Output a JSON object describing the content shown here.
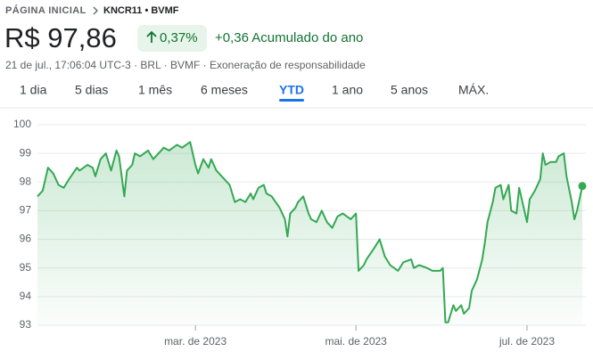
{
  "header": {
    "breadcrumb_home": "PÁGINA INICIAL",
    "breadcrumb_ticker": "KNCR11 • BVMF",
    "price": "R$ 97,86",
    "change_percent": "0,37%",
    "change_ytd": "+0,36 Acumulado do ano",
    "info": "21 de jul., 17:06:04 UTC-3 · BRL · BVMF · Exoneração de responsabilidade"
  },
  "tabs": [
    "1 dia",
    "5 dias",
    "1 mês",
    "6 meses",
    "YTD",
    "1 ano",
    "5 anos",
    "MÁX."
  ],
  "selected_tab": 4,
  "chart_data": {
    "type": "line",
    "color": "#34a853",
    "x": [
      0,
      2,
      4,
      6,
      8,
      10,
      12,
      15,
      16,
      19,
      21,
      22,
      24,
      26,
      28,
      30,
      31,
      33,
      34,
      36,
      37,
      39,
      42,
      44,
      46,
      48,
      50,
      53,
      55,
      58,
      60,
      61,
      63,
      65,
      66,
      68,
      71,
      73,
      75,
      77,
      79,
      81,
      82,
      84,
      86,
      87,
      89,
      92,
      94,
      95,
      96,
      98,
      99,
      101,
      103,
      104,
      106,
      108,
      110,
      112,
      114,
      116,
      119,
      121,
      122,
      124,
      125,
      128,
      130,
      132,
      134,
      137,
      139,
      142,
      143,
      145,
      148,
      150,
      153,
      154,
      155,
      156,
      158,
      159,
      161,
      162,
      164,
      165,
      167,
      169,
      170,
      171,
      173,
      174,
      176,
      177,
      179,
      180,
      182,
      183,
      186,
      187,
      189,
      191,
      192,
      193,
      195,
      197,
      198,
      200,
      201,
      203,
      204,
      205,
      207
    ],
    "values": [
      97.5,
      97.7,
      98.5,
      98.3,
      97.9,
      97.8,
      98.1,
      98.5,
      98.4,
      98.6,
      98.5,
      98.2,
      98.8,
      99.0,
      98.4,
      99.1,
      98.9,
      97.5,
      98.4,
      98.6,
      99.0,
      98.9,
      99.1,
      98.8,
      99.0,
      99.2,
      99.1,
      99.3,
      99.2,
      99.4,
      98.6,
      98.3,
      98.8,
      98.5,
      98.8,
      98.4,
      98.1,
      97.9,
      97.3,
      97.4,
      97.3,
      97.6,
      97.4,
      97.8,
      97.9,
      97.6,
      97.5,
      97.1,
      96.7,
      96.1,
      96.9,
      97.1,
      97.3,
      97.5,
      96.9,
      96.7,
      96.6,
      97.0,
      96.6,
      96.4,
      96.8,
      96.9,
      96.7,
      96.9,
      94.9,
      95.1,
      95.3,
      95.7,
      96.0,
      95.4,
      95.1,
      94.9,
      95.2,
      95.3,
      95.0,
      95.1,
      95.0,
      94.9,
      94.9,
      95.0,
      93.1,
      93.1,
      93.7,
      93.5,
      93.7,
      93.4,
      93.6,
      94.2,
      94.6,
      95.3,
      95.9,
      96.6,
      97.3,
      97.8,
      97.9,
      97.4,
      97.9,
      97.0,
      96.9,
      97.8,
      96.6,
      97.4,
      97.7,
      98.1,
      99.0,
      98.6,
      98.7,
      98.7,
      98.9,
      99.0,
      98.2,
      97.3,
      96.7,
      97.0,
      97.86
    ],
    "xlim": [
      0,
      207
    ],
    "xticks": [
      {
        "value": 60,
        "label": "mar. de 2023"
      },
      {
        "value": 121,
        "label": "mai. de 2023"
      },
      {
        "value": 186,
        "label": "jul. de 2023"
      }
    ],
    "ylim": [
      93,
      100
    ],
    "yticks": [
      93,
      94,
      95,
      96,
      97,
      98,
      99,
      100
    ],
    "grid": true
  }
}
